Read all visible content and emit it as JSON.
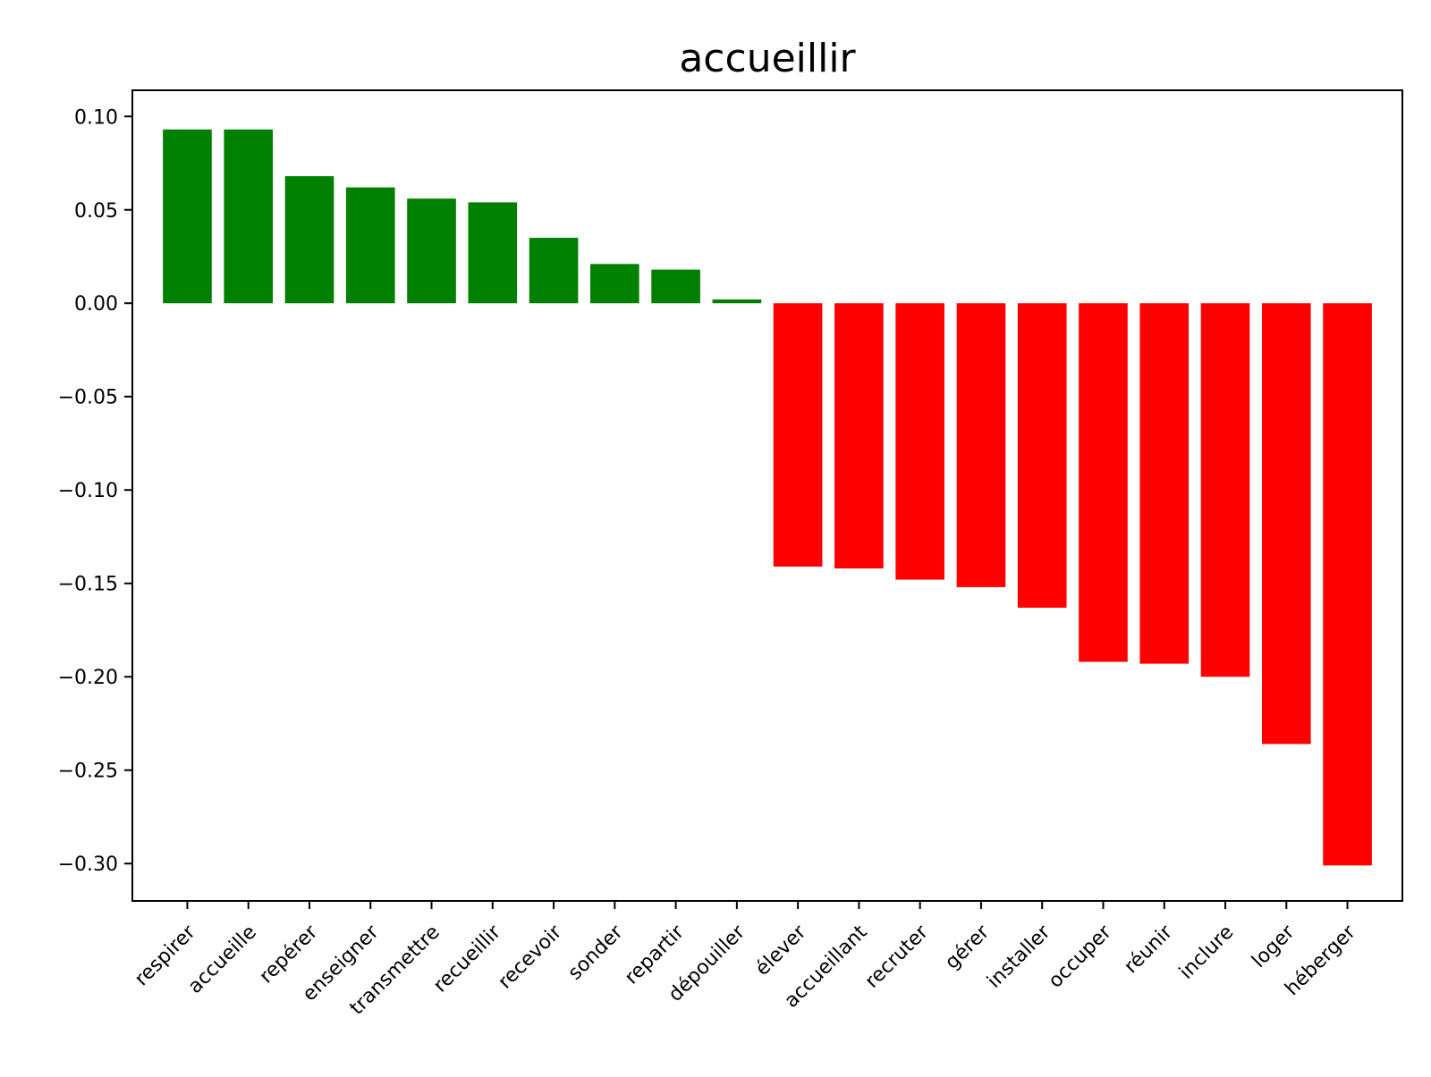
{
  "chart_data": {
    "type": "bar",
    "title": "accueillir",
    "xlabel": "",
    "ylabel": "",
    "ylim": [
      -0.32,
      0.114
    ],
    "yticks": [
      0.1,
      0.05,
      0.0,
      -0.05,
      -0.1,
      -0.15,
      -0.2,
      -0.25,
      -0.3
    ],
    "ytick_labels": [
      "0.10",
      "0.05",
      "0.00",
      "−0.05",
      "−0.10",
      "−0.15",
      "−0.20",
      "−0.25",
      "−0.30"
    ],
    "grid": false,
    "positive_color": "#008000",
    "negative_color": "#ff0000",
    "categories": [
      "respirer",
      "accueille",
      "repérer",
      "enseigner",
      "transmettre",
      "recueillir",
      "recevoir",
      "sonder",
      "repartir",
      "dépouiller",
      "élever",
      "accueillant",
      "recruter",
      "gérer",
      "installer",
      "occuper",
      "réunir",
      "inclure",
      "loger",
      "héberger"
    ],
    "values": [
      0.093,
      0.093,
      0.068,
      0.062,
      0.056,
      0.054,
      0.035,
      0.021,
      0.018,
      0.002,
      -0.141,
      -0.142,
      -0.148,
      -0.152,
      -0.163,
      -0.192,
      -0.193,
      -0.2,
      -0.236,
      -0.301
    ]
  }
}
